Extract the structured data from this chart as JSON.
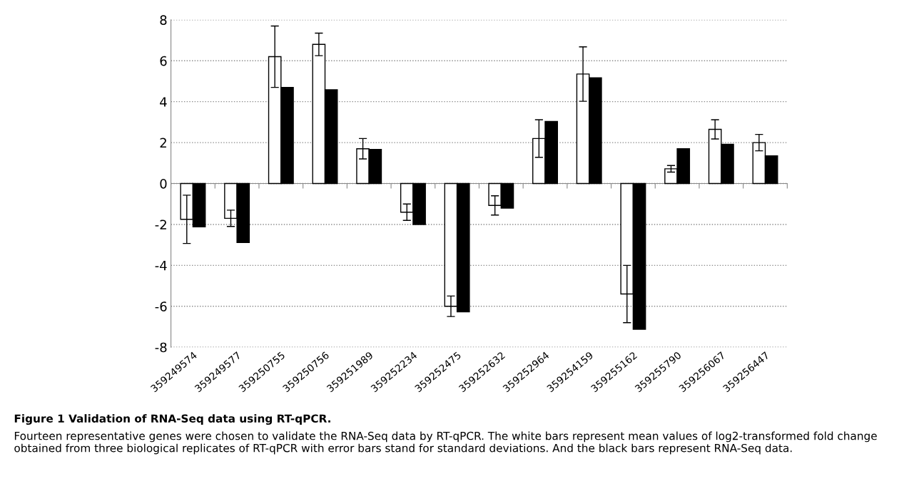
{
  "chart_data": {
    "type": "bar",
    "title": "Figure 1 Validation of RNA-Seq data using RT-qPCR.",
    "annotations": [
      "Fourteen representative genes were chosen to validate the RNA-Seq data by RT-qPCR. The white bars represent mean values of log2-transformed fold change obtained from three biological replicates of RT-qPCR with error bars stand for standard deviations. And the black bars represent RNA-Seq data."
    ],
    "categories": [
      "359249574",
      "359249577",
      "359250755",
      "359250756",
      "359251989",
      "359252234",
      "359252475",
      "359252632",
      "359252964",
      "359254159",
      "359255162",
      "359255790",
      "359256067",
      "359256447"
    ],
    "series": [
      {
        "color": "#ffffff",
        "values": [
          -1.75,
          -1.7,
          6.2,
          6.8,
          1.7,
          -1.4,
          -6.0,
          -1.07,
          2.2,
          5.35,
          -5.4,
          0.72,
          2.65,
          2.0
        ],
        "errors": [
          1.18,
          0.4,
          1.5,
          0.55,
          0.5,
          0.4,
          0.5,
          0.47,
          0.92,
          1.33,
          1.4,
          0.16,
          0.47,
          0.4
        ]
      },
      {
        "color": "#000000",
        "values": [
          -2.12,
          -2.88,
          4.7,
          4.58,
          1.67,
          -2.0,
          -6.27,
          -1.2,
          3.03,
          5.17,
          -7.12,
          1.7,
          1.92,
          1.35
        ]
      }
    ],
    "ylim": [
      -8,
      8
    ],
    "yticks": [
      -8,
      -6,
      -4,
      -2,
      0,
      2,
      4,
      6,
      8
    ],
    "grid": "y",
    "legend": false
  }
}
